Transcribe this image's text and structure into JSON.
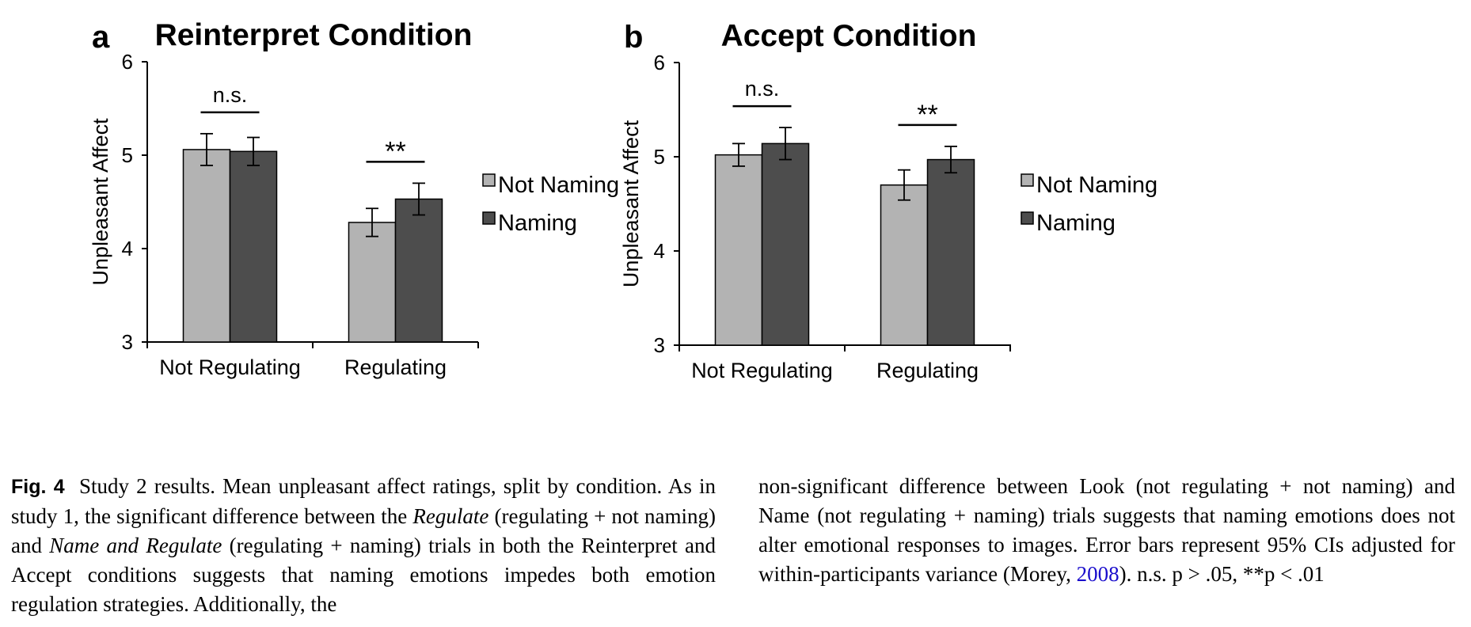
{
  "chart_data": [
    {
      "type": "bar",
      "panel_label": "a",
      "title": "Reinterpret Condition",
      "xlabel": "",
      "ylabel": "Unpleasant Affect",
      "ylim": [
        3,
        6
      ],
      "yticks": [
        3,
        4,
        5,
        6
      ],
      "categories": [
        "Not Regulating",
        "Regulating"
      ],
      "series": [
        {
          "name": "Not Naming",
          "color": "#b3b3b3",
          "values": [
            5.06,
            4.28
          ],
          "ci": [
            0.17,
            0.15
          ]
        },
        {
          "name": "Naming",
          "color": "#4d4d4d",
          "values": [
            5.04,
            4.53
          ],
          "ci": [
            0.15,
            0.17
          ]
        }
      ],
      "significance": [
        {
          "category": "Not Regulating",
          "label": "n.s."
        },
        {
          "category": "Regulating",
          "label": "**"
        }
      ],
      "legend_position": "right",
      "grid": false
    },
    {
      "type": "bar",
      "panel_label": "b",
      "title": "Accept Condition",
      "xlabel": "",
      "ylabel": "Unpleasant Affect",
      "ylim": [
        3,
        6
      ],
      "yticks": [
        3,
        4,
        5,
        6
      ],
      "categories": [
        "Not Regulating",
        "Regulating"
      ],
      "series": [
        {
          "name": "Not Naming",
          "color": "#b3b3b3",
          "values": [
            5.02,
            4.7
          ],
          "ci": [
            0.12,
            0.16
          ]
        },
        {
          "name": "Naming",
          "color": "#4d4d4d",
          "values": [
            5.14,
            4.97
          ],
          "ci": [
            0.17,
            0.14
          ]
        }
      ],
      "significance": [
        {
          "category": "Not Regulating",
          "label": "n.s."
        },
        {
          "category": "Regulating",
          "label": "**"
        }
      ],
      "legend_position": "right",
      "grid": false
    }
  ],
  "caption": {
    "label": "Fig. 4",
    "left_text_1": "Study 2 results. Mean unpleasant affect ratings, split by condition. As in study 1, the significant difference between the ",
    "term_regulate": "Regulate",
    "left_text_2": " (regulating + not naming) and ",
    "term_name_regulate": "Name and Regulate",
    "left_text_3": " (regulating + naming) trials in both the Reinterpret and Accept conditions suggests that naming emotions impedes both emotion regulation strategies. Additionally, the",
    "right_text_1": "non-significant difference between Look (not regulating + not naming) and Name (not regulating + naming) trials suggests that naming emotions does not alter emotional responses to images. Error bars represent 95% CIs adjusted for within-participants variance (Morey, ",
    "ref_year": "2008",
    "right_text_2": "). n.s. p > .05, **p < .01"
  }
}
